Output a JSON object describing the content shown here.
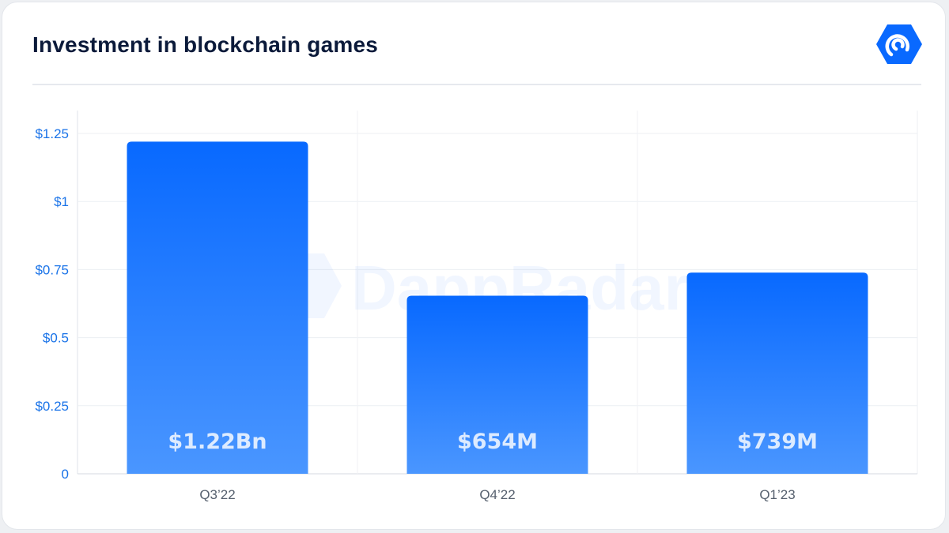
{
  "header": {
    "title": "Investment in blockchain games"
  },
  "brand": {
    "logo_icon": "dappradar-hexagon-icon",
    "watermark": "DappRadar",
    "accent": "#0969ff"
  },
  "chart_data": {
    "type": "bar",
    "title": "Investment in blockchain games",
    "categories": [
      "Q3’22",
      "Q4’22",
      "Q1’23"
    ],
    "values": [
      1.22,
      0.654,
      0.739
    ],
    "data_labels": [
      "$1.22Bn",
      "$654M",
      "$739M"
    ],
    "y_ticks": [
      "0",
      "$0.25",
      "$0.5",
      "$0.75",
      "$1",
      "$1.25"
    ],
    "y_tick_values": [
      0,
      0.25,
      0.5,
      0.75,
      1,
      1.25
    ],
    "ylim": [
      0,
      1.25
    ],
    "grid": true,
    "legend": "none",
    "colors": {
      "bar_top": "#0869ff",
      "bar_bottom": "#4a96ff",
      "tick_label": "#1a73e8",
      "cat_label": "#555f6d"
    }
  }
}
